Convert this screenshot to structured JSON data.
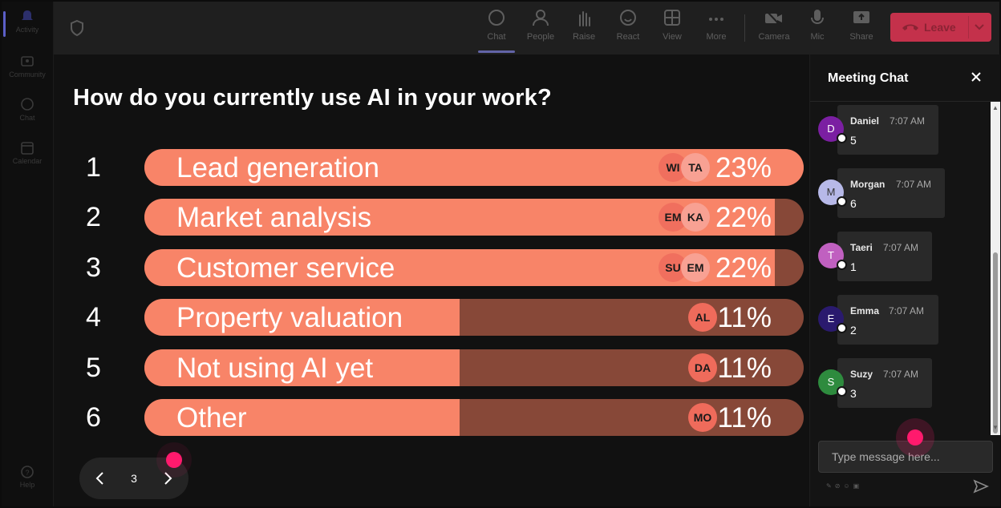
{
  "rail": {
    "items": [
      {
        "label": "Activity",
        "icon": "bell-icon"
      },
      {
        "label": "Community",
        "icon": "community-icon"
      },
      {
        "label": "Chat",
        "icon": "chat-icon"
      },
      {
        "label": "Calendar",
        "icon": "calendar-icon"
      }
    ],
    "help": "Help"
  },
  "toolbar": {
    "chat": "Chat",
    "people": "People",
    "raise": "Raise",
    "react": "React",
    "view": "View",
    "more": "More",
    "camera": "Camera",
    "mic": "Mic",
    "share": "Share",
    "leave": "Leave"
  },
  "poll": {
    "question": "How do you currently use AI in your work?",
    "options": [
      {
        "num": "1",
        "label": "Lead generation",
        "pct": "23%",
        "fraction": 0.23,
        "avatars": [
          "WI",
          "TA"
        ]
      },
      {
        "num": "2",
        "label": "Market analysis",
        "pct": "22%",
        "fraction": 0.22,
        "avatars": [
          "EM",
          "KA"
        ]
      },
      {
        "num": "3",
        "label": "Customer service",
        "pct": "22%",
        "fraction": 0.22,
        "avatars": [
          "SU",
          "EM"
        ]
      },
      {
        "num": "4",
        "label": "Property valuation",
        "pct": "11%",
        "fraction": 0.11,
        "avatars": [
          "AL"
        ]
      },
      {
        "num": "5",
        "label": "Not using AI yet",
        "pct": "11%",
        "fraction": 0.11,
        "avatars": [
          "DA"
        ]
      },
      {
        "num": "6",
        "label": "Other",
        "pct": "11%",
        "fraction": 0.11,
        "avatars": [
          "MO"
        ]
      }
    ],
    "page": "3"
  },
  "chat": {
    "title": "Meeting Chat",
    "placeholder": "Type message here...",
    "messages": [
      {
        "initial": "D",
        "name": "Daniel",
        "time": "7:07 AM",
        "text": "5",
        "color": "#7b1fa2"
      },
      {
        "initial": "M",
        "name": "Morgan",
        "time": "7:07 AM",
        "text": "6",
        "color": "#b7b9e8"
      },
      {
        "initial": "T",
        "name": "Taeri",
        "time": "7:07 AM",
        "text": "1",
        "color": "#c060c0"
      },
      {
        "initial": "E",
        "name": "Emma",
        "time": "7:07 AM",
        "text": "2",
        "color": "#2a1a6e"
      },
      {
        "initial": "S",
        "name": "Suzy",
        "time": "7:07 AM",
        "text": "3",
        "color": "#2e8b3e"
      }
    ]
  }
}
